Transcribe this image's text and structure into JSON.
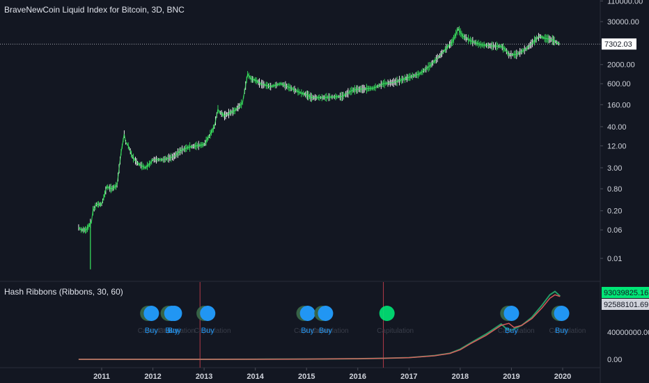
{
  "colors": {
    "background": "#131722",
    "grid": "#1e2230",
    "axis_text": "#d1d4dc",
    "price_line": "#b8f5a8",
    "price_candle": "#39e75f",
    "price_wick": "#ffffff",
    "ribbon_fast": "#26a269",
    "ribbon_slow": "#e05d5d",
    "capitulation_line": "#b23a48",
    "buy_dot": "#2196f3",
    "cap_dot": "#3b6b4a",
    "cap_dot_bright": "#00e676",
    "label_fast_bg": "#00e676",
    "label_slow_bg": "#d1d4dc",
    "last_price_bg": "#ffffff"
  },
  "main": {
    "title": "BraveNewCoin Liquid Index for Bitcoin, 3D, BNC",
    "last_price": "7302.03"
  },
  "indicator": {
    "title": "Hash Ribbons (Ribbons, 30, 60)",
    "value_fast": "93039825.16",
    "value_slow": "92588101.69"
  },
  "chart_data": [
    {
      "type": "line",
      "title": "BraveNewCoin Liquid Index for Bitcoin, 3D, BNC",
      "scale": "log",
      "y_ticks": [
        "110000.00",
        "30000.00",
        "7302.03",
        "2000.00",
        "600.00",
        "160.00",
        "40.00",
        "12.00",
        "3.00",
        "0.80",
        "0.20",
        "0.06",
        "0.01"
      ],
      "ylim": [
        0.005,
        110000
      ],
      "x_ticks": [
        "2011",
        "2012",
        "2013",
        "2014",
        "2015",
        "2016",
        "2017",
        "2018",
        "2019",
        "2020"
      ],
      "x": [
        2010.55,
        2010.6,
        2010.7,
        2010.8,
        2010.83,
        2010.9,
        2011.0,
        2011.1,
        2011.2,
        2011.3,
        2011.38,
        2011.44,
        2011.47,
        2011.52,
        2011.6,
        2011.7,
        2011.85,
        2011.95,
        2012.0,
        2012.2,
        2012.4,
        2012.55,
        2012.7,
        2012.85,
        2013.0,
        2013.1,
        2013.2,
        2013.27,
        2013.3,
        2013.4,
        2013.5,
        2013.6,
        2013.75,
        2013.85,
        2013.92,
        2014.0,
        2014.1,
        2014.3,
        2014.5,
        2014.7,
        2014.9,
        2015.0,
        2015.1,
        2015.3,
        2015.5,
        2015.7,
        2015.9,
        2016.0,
        2016.3,
        2016.5,
        2016.7,
        2016.9,
        2017.0,
        2017.2,
        2017.4,
        2017.6,
        2017.75,
        2017.85,
        2017.96,
        2018.05,
        2018.2,
        2018.4,
        2018.6,
        2018.8,
        2018.88,
        2018.95,
        2019.1,
        2019.3,
        2019.45,
        2019.55,
        2019.65,
        2019.8,
        2019.9,
        2019.95
      ],
      "y": [
        0.07,
        0.06,
        0.06,
        0.1,
        0.2,
        0.3,
        0.3,
        0.9,
        0.8,
        1.0,
        8,
        25,
        15,
        12,
        6,
        4,
        3,
        4,
        5,
        5,
        6,
        9,
        11,
        12,
        13,
        22,
        40,
        120,
        100,
        80,
        95,
        110,
        180,
        1100,
        800,
        750,
        600,
        500,
        600,
        450,
        330,
        300,
        250,
        250,
        260,
        270,
        400,
        420,
        450,
        600,
        650,
        800,
        900,
        1100,
        1800,
        3500,
        6000,
        8500,
        19000,
        12000,
        9000,
        7000,
        6500,
        6300,
        5200,
        3700,
        3800,
        5500,
        9000,
        12000,
        10500,
        9500,
        7800,
        7302.03
      ]
    },
    {
      "type": "line",
      "title": "Hash Ribbons (Ribbons, 30, 60)",
      "scale": "linear",
      "y_ticks": [
        "93039825.16",
        "92588101.69",
        "40000000.00",
        "0.00"
      ],
      "ylim": [
        -6000000,
        107000000
      ],
      "series": [
        {
          "x": [
            2010.55,
            2011.0,
            2012.0,
            2013.0,
            2014.0,
            2015.0,
            2016.0,
            2016.5,
            2017.0,
            2017.5,
            2017.8,
            2018.0,
            2018.2,
            2018.5,
            2018.8,
            2018.9,
            2019.0,
            2019.2,
            2019.4,
            2019.6,
            2019.75,
            2019.85,
            2019.95
          ],
          "y": [
            0,
            0,
            5000,
            20000,
            150000,
            400000,
            900000,
            1600000,
            2500000,
            5500000,
            9000000,
            15000000,
            24000000,
            37000000,
            52000000,
            45000000,
            43000000,
            50000000,
            62000000,
            80000000,
            95000000,
            100000000,
            93039825.16
          ]
        },
        {
          "x": [
            2010.55,
            2011.0,
            2012.0,
            2013.0,
            2014.0,
            2015.0,
            2016.0,
            2016.5,
            2017.0,
            2017.5,
            2017.8,
            2018.0,
            2018.2,
            2018.5,
            2018.8,
            2018.95,
            2019.05,
            2019.2,
            2019.4,
            2019.6,
            2019.75,
            2019.85,
            2019.95
          ],
          "y": [
            0,
            0,
            5000,
            20000,
            140000,
            380000,
            880000,
            1550000,
            2400000,
            5300000,
            8700000,
            14000000,
            23000000,
            35000000,
            50000000,
            53000000,
            47000000,
            50000000,
            60000000,
            76000000,
            90000000,
            95000000,
            92588101.69
          ]
        }
      ],
      "capitulation_x": [
        2012.92,
        2016.5
      ],
      "signals": [
        {
          "x": 2011.9,
          "kind": "capitulation",
          "text": "Capitulation"
        },
        {
          "x": 2011.97,
          "kind": "buy",
          "text": "Buy"
        },
        {
          "x": 2012.3,
          "kind": "capitulation",
          "text": "Capitulation"
        },
        {
          "x": 2012.37,
          "kind": "buy",
          "text": "Buy"
        },
        {
          "x": 2012.42,
          "kind": "buy",
          "text": "Buy"
        },
        {
          "x": 2013.0,
          "kind": "capitulation",
          "text": "Capitulation"
        },
        {
          "x": 2013.07,
          "kind": "buy",
          "text": "Buy"
        },
        {
          "x": 2014.95,
          "kind": "capitulation",
          "text": "Capitulation"
        },
        {
          "x": 2015.02,
          "kind": "buy",
          "text": "Buy"
        },
        {
          "x": 2015.3,
          "kind": "capitulation",
          "text": "Capitulation"
        },
        {
          "x": 2015.37,
          "kind": "buy",
          "text": "Buy"
        },
        {
          "x": 2016.57,
          "kind": "capitulation",
          "text": "Capitulation"
        },
        {
          "x": 2018.93,
          "kind": "capitulation",
          "text": "Capitulation"
        },
        {
          "x": 2019.0,
          "kind": "buy",
          "text": "Buy"
        },
        {
          "x": 2019.93,
          "kind": "capitulation",
          "text": "Capitulation"
        },
        {
          "x": 2019.98,
          "kind": "buy",
          "text": "Buy"
        }
      ]
    }
  ]
}
